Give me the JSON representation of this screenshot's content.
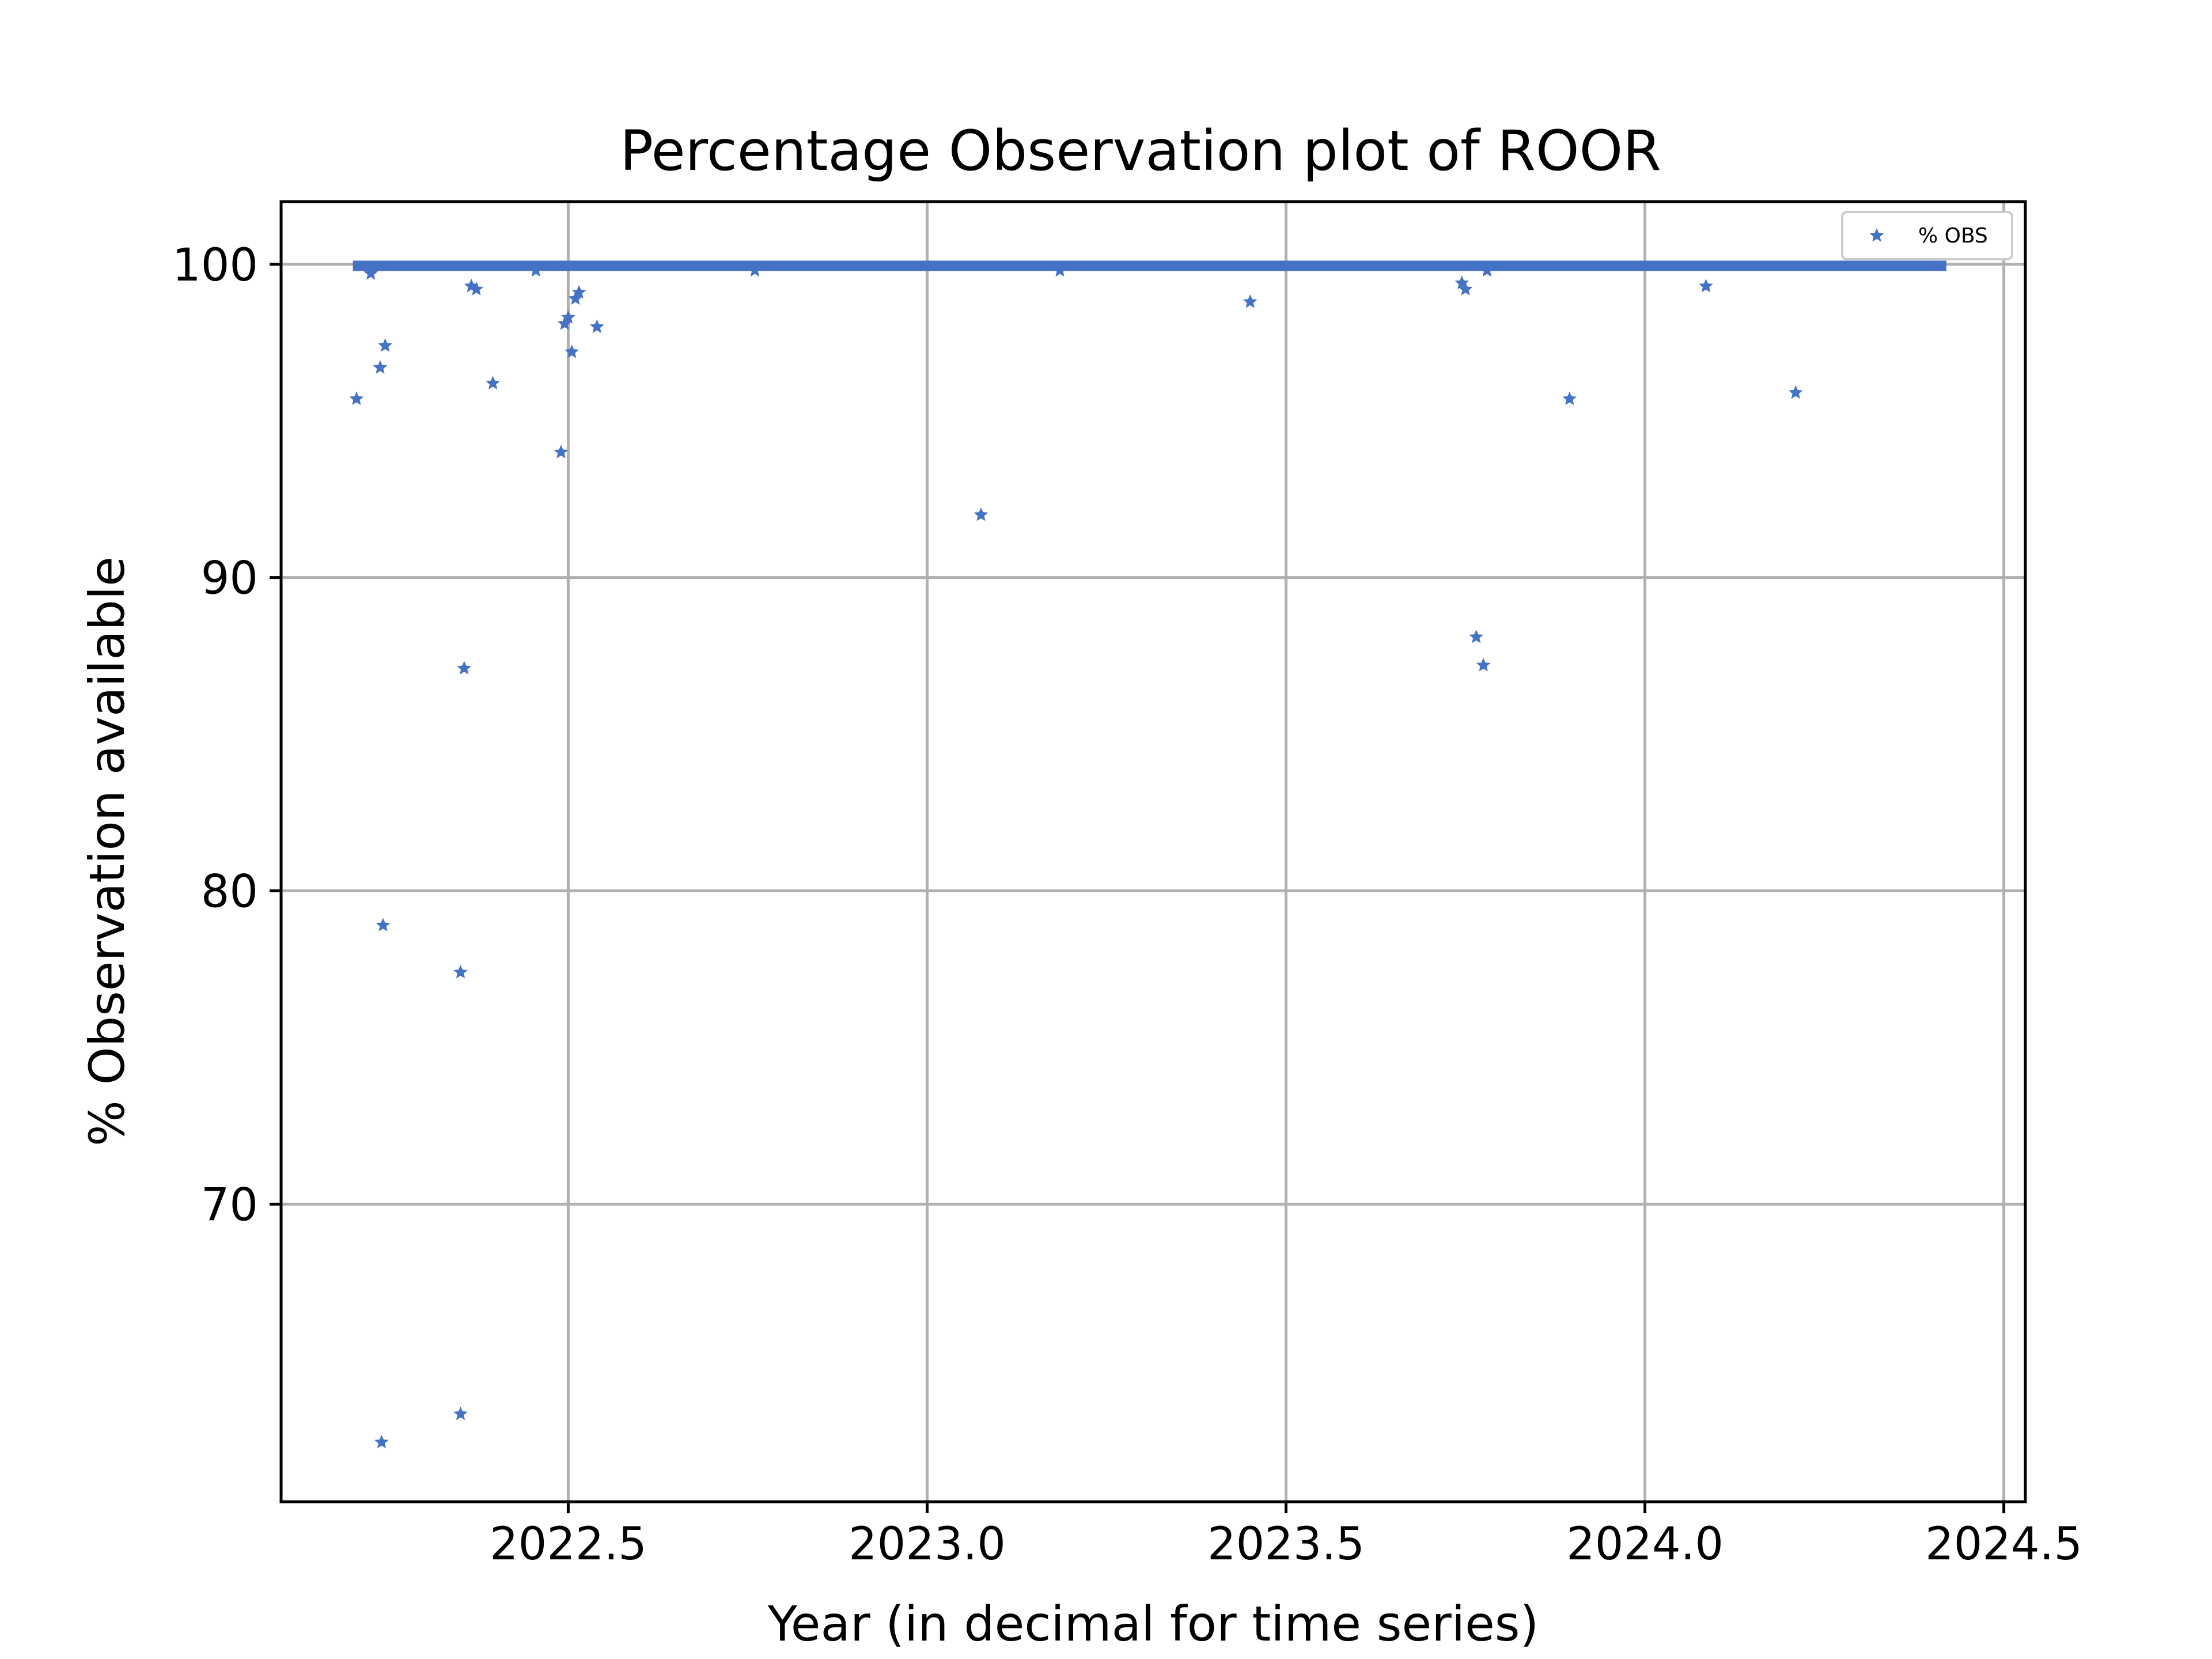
{
  "chart_data": {
    "type": "scatter",
    "title": "Percentage Observation plot of ROOR",
    "xlabel": "Year (in decimal for time series)",
    "ylabel": "% Observation available",
    "xlim": [
      2022.1,
      2024.53
    ],
    "ylim": [
      60.5,
      102
    ],
    "x_ticks": [
      2022.5,
      2023.0,
      2023.5,
      2024.0,
      2024.5
    ],
    "x_tick_labels": [
      "2022.5",
      "2023.0",
      "2023.5",
      "2024.0",
      "2024.5"
    ],
    "y_ticks": [
      70,
      80,
      90,
      100
    ],
    "y_tick_labels": [
      "70",
      "80",
      "90",
      "100"
    ],
    "grid": true,
    "legend_position": "top-right",
    "color": "#4472c4",
    "marker": "star",
    "series": [
      {
        "name": "% OBS",
        "baseline": {
          "x_start": 2022.2,
          "x_end": 2024.42,
          "y": 99.95
        },
        "points": [
          {
            "x": 2022.205,
            "y": 95.7
          },
          {
            "x": 2022.225,
            "y": 99.7
          },
          {
            "x": 2022.24,
            "y": 62.4
          },
          {
            "x": 2022.238,
            "y": 96.7
          },
          {
            "x": 2022.242,
            "y": 78.9
          },
          {
            "x": 2022.245,
            "y": 97.4
          },
          {
            "x": 2022.35,
            "y": 63.3
          },
          {
            "x": 2022.35,
            "y": 77.4
          },
          {
            "x": 2022.355,
            "y": 87.1
          },
          {
            "x": 2022.365,
            "y": 99.3
          },
          {
            "x": 2022.372,
            "y": 99.2
          },
          {
            "x": 2022.395,
            "y": 96.2
          },
          {
            "x": 2022.455,
            "y": 99.8
          },
          {
            "x": 2022.49,
            "y": 94.0
          },
          {
            "x": 2022.495,
            "y": 98.1
          },
          {
            "x": 2022.5,
            "y": 98.3
          },
          {
            "x": 2022.505,
            "y": 97.2
          },
          {
            "x": 2022.51,
            "y": 98.9
          },
          {
            "x": 2022.515,
            "y": 99.1
          },
          {
            "x": 2022.54,
            "y": 98.0
          },
          {
            "x": 2022.76,
            "y": 99.8
          },
          {
            "x": 2023.075,
            "y": 92.0
          },
          {
            "x": 2023.185,
            "y": 99.8
          },
          {
            "x": 2023.45,
            "y": 98.8
          },
          {
            "x": 2023.745,
            "y": 99.4
          },
          {
            "x": 2023.75,
            "y": 99.2
          },
          {
            "x": 2023.765,
            "y": 88.1
          },
          {
            "x": 2023.775,
            "y": 87.2
          },
          {
            "x": 2023.78,
            "y": 99.8
          },
          {
            "x": 2023.895,
            "y": 95.7
          },
          {
            "x": 2024.085,
            "y": 99.3
          },
          {
            "x": 2024.21,
            "y": 95.9
          }
        ]
      }
    ]
  }
}
